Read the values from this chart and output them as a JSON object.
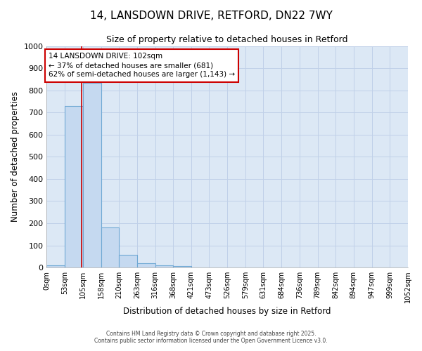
{
  "title1": "14, LANSDOWN DRIVE, RETFORD, DN22 7WY",
  "title2": "Size of property relative to detached houses in Retford",
  "xlabel": "Distribution of detached houses by size in Retford",
  "ylabel": "Number of detached properties",
  "annotation_line1": "14 LANSDOWN DRIVE: 102sqm",
  "annotation_line2": "← 37% of detached houses are smaller (681)",
  "annotation_line3": "62% of semi-detached houses are larger (1,143) →",
  "bar_edges": [
    0,
    53,
    105,
    158,
    210,
    263,
    316,
    368,
    421,
    473,
    526,
    579,
    631,
    684,
    736,
    789,
    842,
    894,
    947,
    999,
    1052
  ],
  "bar_heights": [
    10,
    730,
    835,
    182,
    57,
    20,
    10,
    8,
    0,
    0,
    0,
    0,
    0,
    0,
    0,
    0,
    0,
    0,
    0,
    0
  ],
  "bar_color": "#c5d9f0",
  "bar_edge_color": "#6fa8d4",
  "vline_x": 102,
  "vline_color": "#cc0000",
  "ylim": [
    0,
    1000
  ],
  "yticks": [
    0,
    100,
    200,
    300,
    400,
    500,
    600,
    700,
    800,
    900,
    1000
  ],
  "grid_color": "#c0d0e8",
  "background_color": "#dce8f5",
  "footer_line1": "Contains HM Land Registry data © Crown copyright and database right 2025.",
  "footer_line2": "Contains public sector information licensed under the Open Government Licence v3.0.",
  "tick_labels": [
    "0sqm",
    "53sqm",
    "105sqm",
    "158sqm",
    "210sqm",
    "263sqm",
    "316sqm",
    "368sqm",
    "421sqm",
    "473sqm",
    "526sqm",
    "579sqm",
    "631sqm",
    "684sqm",
    "736sqm",
    "789sqm",
    "842sqm",
    "894sqm",
    "947sqm",
    "999sqm",
    "1052sqm"
  ]
}
